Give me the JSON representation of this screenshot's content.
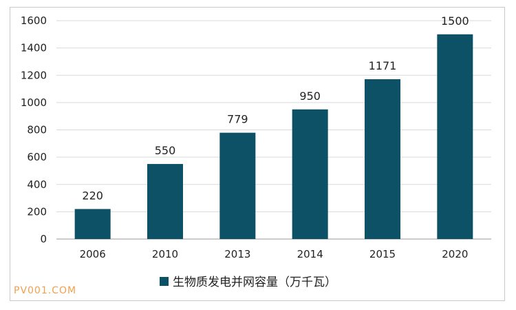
{
  "chart_data": {
    "type": "bar",
    "categories": [
      "2006",
      "2010",
      "2013",
      "2014",
      "2015",
      "2020"
    ],
    "series": [
      {
        "name": "生物质发电并网容量（万千瓦）",
        "values": [
          220,
          550,
          779,
          950,
          1171,
          1500
        ],
        "color": "#0d5166"
      }
    ],
    "data_labels": [
      "220",
      "550",
      "779",
      "950",
      "1171",
      "1500"
    ],
    "ylim": [
      0,
      1600
    ],
    "yticks": [
      0,
      200,
      400,
      600,
      800,
      1000,
      1200,
      1400,
      1600
    ],
    "grid": true,
    "legend": "bottom-center"
  },
  "watermark": {
    "text": "PV001.COM",
    "color": "#f0a050"
  }
}
